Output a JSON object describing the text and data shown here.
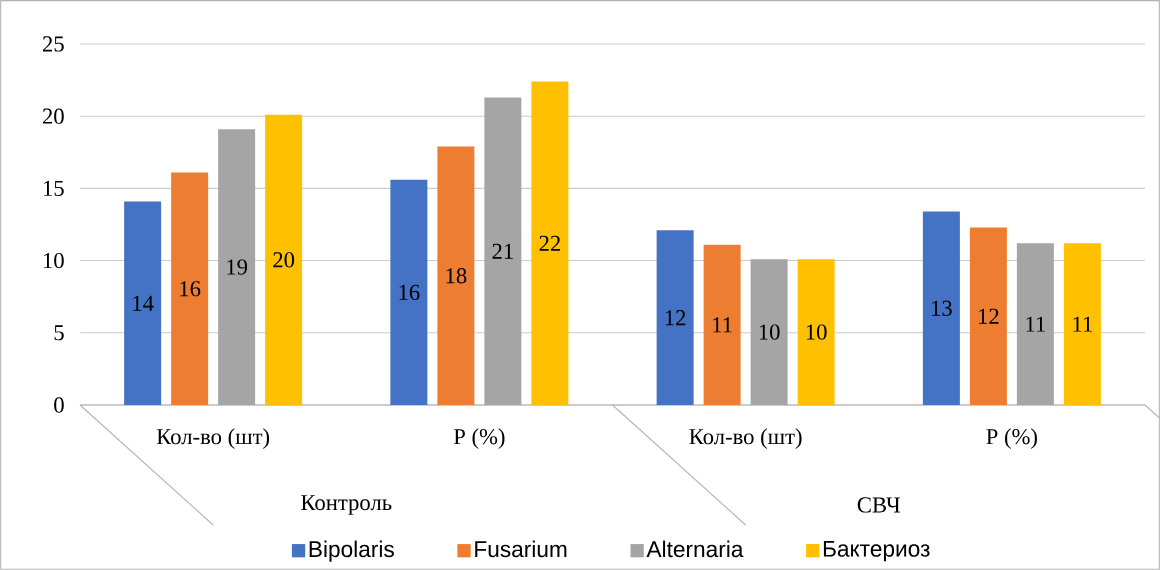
{
  "chart_data": {
    "type": "bar",
    "categories": [
      "Кол-во (шт)",
      "Р (%)",
      "Кол-во (шт)",
      "Р (%)"
    ],
    "annotations": [
      "Контроль",
      "СВЧ"
    ],
    "series": [
      {
        "name": "Bipolaris",
        "color": "#4472c4",
        "values": [
          14.1,
          15.6,
          12.1,
          13.4
        ],
        "value_labels": [
          "14",
          "16",
          "12",
          "13"
        ]
      },
      {
        "name": "Fusarium",
        "color": "#ed7d31",
        "values": [
          16.1,
          17.9,
          11.1,
          12.3
        ],
        "value_labels": [
          "16",
          "18",
          "11",
          "12"
        ]
      },
      {
        "name": "Alternaria",
        "color": "#a5a5a5",
        "values": [
          19.1,
          21.3,
          10.1,
          11.2
        ],
        "value_labels": [
          "19",
          "21",
          "10",
          "11"
        ]
      },
      {
        "name": "Бактериоз",
        "color": "#ffc000",
        "values": [
          20.1,
          22.4,
          10.1,
          11.2
        ],
        "value_labels": [
          "20",
          "22",
          "10",
          "11"
        ]
      }
    ],
    "ylim": [
      0,
      25
    ],
    "yticks": [
      0,
      5,
      10,
      15,
      20,
      25
    ],
    "grid": "y",
    "legend": "bottom"
  }
}
